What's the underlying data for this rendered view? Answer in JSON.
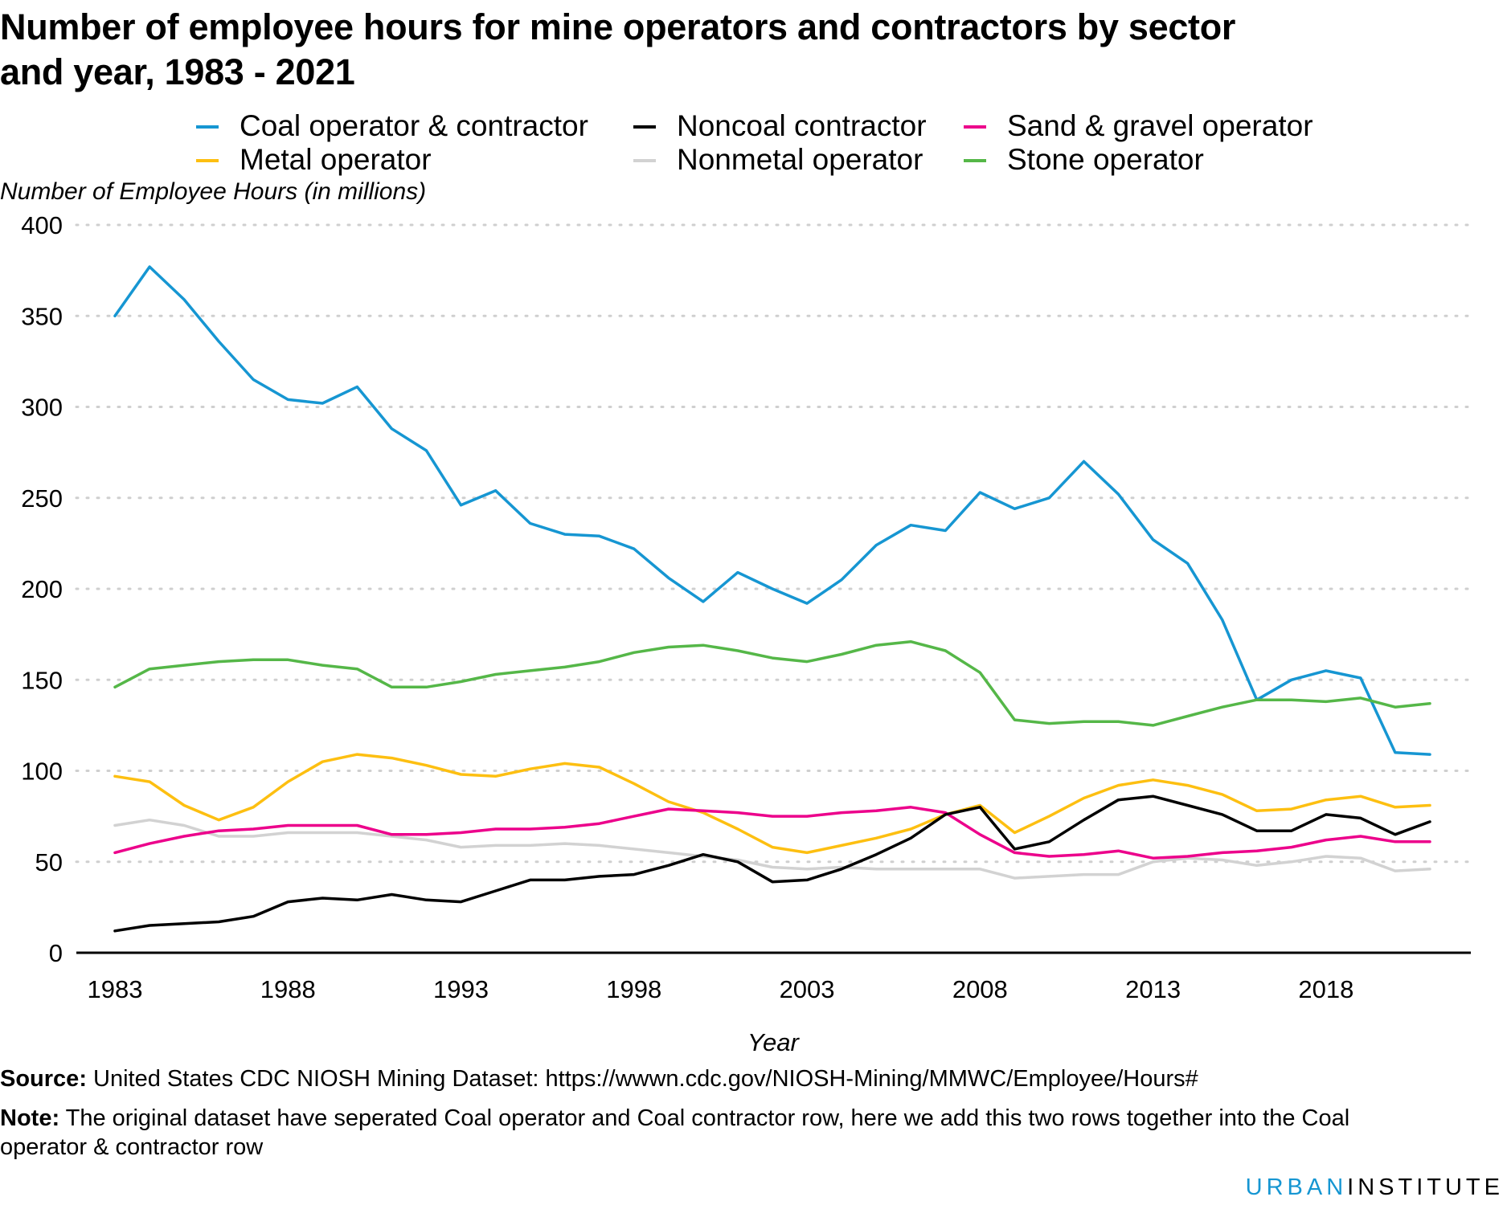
{
  "title": "Number of employee hours for mine operators and contractors by sector and year, 1983 - 2021",
  "ylabel": "Number of Employee Hours (in millions)",
  "xlabel": "Year",
  "source_label": "Source:",
  "source_text": " United States CDC NIOSH Mining Dataset: https://wwwn.cdc.gov/NIOSH-Mining/MMWC/Employee/Hours#",
  "note_label": "Note:",
  "note_line1": " The original dataset have seperated Coal operator and Coal contractor row, here we add this two rows together into the Coal",
  "note_line2": "operator & contractor row",
  "brand_urban": "URBAN",
  "brand_institute": "INSTITUTE",
  "chart_data": {
    "type": "line",
    "title": "Number of employee hours for mine operators and contractors by sector and year, 1983 - 2021",
    "xlabel": "Year",
    "ylabel": "Number of Employee Hours (in millions)",
    "ylim": [
      0,
      400
    ],
    "xlim": [
      1983,
      2021
    ],
    "yticks": [
      0,
      50,
      100,
      150,
      200,
      250,
      300,
      350,
      400
    ],
    "xticks": [
      1983,
      1988,
      1993,
      1998,
      2003,
      2008,
      2013,
      2018
    ],
    "grid": "horizontal dotted",
    "legend": "top",
    "x": [
      1983,
      1984,
      1985,
      1986,
      1987,
      1988,
      1989,
      1990,
      1991,
      1992,
      1993,
      1994,
      1995,
      1996,
      1997,
      1998,
      1999,
      2000,
      2001,
      2002,
      2003,
      2004,
      2005,
      2006,
      2007,
      2008,
      2009,
      2010,
      2011,
      2012,
      2013,
      2014,
      2015,
      2016,
      2017,
      2018,
      2019,
      2020,
      2021
    ],
    "series": [
      {
        "name": "Coal operator & contractor",
        "color": "#1696d2",
        "values": [
          350,
          377,
          359,
          336,
          315,
          304,
          302,
          311,
          288,
          276,
          246,
          254,
          236,
          230,
          229,
          222,
          206,
          193,
          209,
          200,
          192,
          205,
          224,
          235,
          232,
          253,
          244,
          250,
          270,
          252,
          227,
          214,
          183,
          139,
          150,
          155,
          151,
          110,
          109
        ]
      },
      {
        "name": "Metal operator",
        "color": "#fdbf11",
        "values": [
          97,
          94,
          81,
          73,
          80,
          94,
          105,
          109,
          107,
          103,
          98,
          97,
          101,
          104,
          102,
          93,
          83,
          77,
          68,
          58,
          55,
          59,
          63,
          68,
          76,
          81,
          66,
          75,
          85,
          92,
          95,
          92,
          87,
          78,
          79,
          84,
          86,
          80,
          81
        ]
      },
      {
        "name": "Noncoal contractor",
        "color": "#000000",
        "values": [
          12,
          15,
          16,
          17,
          20,
          28,
          30,
          29,
          32,
          29,
          28,
          34,
          40,
          40,
          42,
          43,
          48,
          54,
          50,
          39,
          40,
          46,
          54,
          63,
          76,
          80,
          57,
          61,
          73,
          84,
          86,
          81,
          76,
          67,
          67,
          76,
          74,
          65,
          72
        ]
      },
      {
        "name": "Nonmetal operator",
        "color": "#d2d2d2",
        "values": [
          70,
          73,
          70,
          64,
          64,
          66,
          66,
          66,
          64,
          62,
          58,
          59,
          59,
          60,
          59,
          57,
          55,
          53,
          51,
          47,
          46,
          47,
          46,
          46,
          46,
          46,
          41,
          42,
          43,
          43,
          50,
          52,
          51,
          48,
          50,
          53,
          52,
          45,
          46
        ]
      },
      {
        "name": "Sand & gravel operator",
        "color": "#ec008b",
        "values": [
          55,
          60,
          64,
          67,
          68,
          70,
          70,
          70,
          65,
          65,
          66,
          68,
          68,
          69,
          71,
          75,
          79,
          78,
          77,
          75,
          75,
          77,
          78,
          80,
          77,
          65,
          55,
          53,
          54,
          56,
          52,
          53,
          55,
          56,
          58,
          62,
          64,
          61,
          61
        ]
      },
      {
        "name": "Stone operator",
        "color": "#55b748",
        "values": [
          146,
          156,
          158,
          160,
          161,
          161,
          158,
          156,
          146,
          146,
          149,
          153,
          155,
          157,
          160,
          165,
          168,
          169,
          166,
          162,
          160,
          164,
          169,
          171,
          166,
          154,
          128,
          126,
          127,
          127,
          125,
          130,
          135,
          139,
          139,
          138,
          140,
          135,
          137
        ]
      }
    ]
  }
}
